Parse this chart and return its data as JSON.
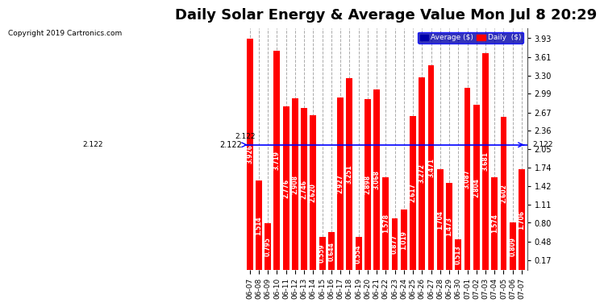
{
  "title": "Daily Solar Energy & Average Value Mon Jul 8 20:29",
  "copyright": "Copyright 2019 Cartronics.com",
  "categories": [
    "06-07",
    "06-08",
    "06-09",
    "06-10",
    "06-11",
    "06-12",
    "06-13",
    "06-14",
    "06-15",
    "06-16",
    "06-17",
    "06-18",
    "06-19",
    "06-20",
    "06-21",
    "06-22",
    "06-23",
    "06-24",
    "06-25",
    "06-26",
    "06-27",
    "06-28",
    "06-29",
    "06-30",
    "07-01",
    "07-02",
    "07-03",
    "07-04",
    "07-05",
    "07-06",
    "07-07"
  ],
  "values": [
    3.926,
    1.514,
    0.795,
    3.719,
    2.776,
    2.908,
    2.746,
    2.62,
    0.559,
    0.644,
    2.927,
    3.251,
    0.554,
    2.898,
    3.068,
    1.578,
    0.877,
    1.019,
    2.617,
    3.272,
    3.471,
    1.704,
    1.473,
    0.513,
    3.087,
    2.804,
    3.681,
    1.574,
    2.602,
    0.809,
    1.706
  ],
  "average": 2.122,
  "bar_color": "#ff0000",
  "avg_line_color": "#0000ff",
  "background_color": "#ffffff",
  "plot_bg_color": "#ffffff",
  "grid_color": "#aaaaaa",
  "title_fontsize": 13,
  "ylabel_right": [
    "0.17",
    "0.48",
    "0.80",
    "1.11",
    "1.42",
    "1.74",
    "2.05",
    "2.36",
    "2.67",
    "2.99",
    "3.30",
    "3.61",
    "3.93"
  ],
  "ylim": [
    0,
    4.1
  ],
  "legend_avg_color": "#0000aa",
  "legend_daily_color": "#ff0000"
}
